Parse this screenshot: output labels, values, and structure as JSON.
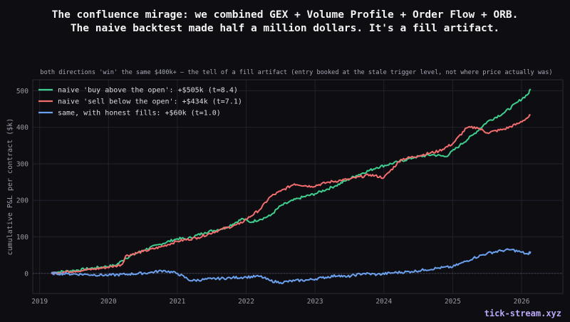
{
  "header": {
    "title_line1": "The confluence mirage: we combined GEX + Volume Profile + Order Flow + ORB.",
    "title_line2": "The naive backtest made half a million dollars. It's a fill artifact."
  },
  "brand": "tick-stream.xyz",
  "colors": {
    "background": "#0d0d12",
    "green": "#3fcf8e",
    "red": "#f26d6d",
    "blue": "#6aa0ee"
  },
  "chart_data": {
    "type": "line",
    "subtitle": "both directions 'win' the same $400k+ — the tell of a fill artifact (entry booked at the stale trigger level, not where price actually was)",
    "xlabel": "",
    "ylabel": "cumulative P&L per contract ($k)",
    "xlim": [
      2018.9,
      2026.6
    ],
    "ylim": [
      -55,
      530
    ],
    "x_ticks": [
      2019,
      2020,
      2021,
      2022,
      2023,
      2024,
      2025,
      2026
    ],
    "y_ticks": [
      0,
      100,
      200,
      300,
      400,
      500
    ],
    "grid": true,
    "legend": "top-left",
    "series": [
      {
        "name": "naive 'buy above the open': +$505k (t=8.4)",
        "color": "#3fcf8e",
        "x": [
          2019.17,
          2019.5,
          2019.8,
          2020.1,
          2020.2,
          2020.25,
          2020.5,
          2020.75,
          2021.0,
          2021.15,
          2021.4,
          2021.7,
          2021.95,
          2022.05,
          2022.2,
          2022.35,
          2022.5,
          2022.75,
          2023.0,
          2023.3,
          2023.6,
          2023.9,
          2024.2,
          2024.45,
          2024.7,
          2024.9,
          2025.1,
          2025.3,
          2025.5,
          2025.75,
          2025.95,
          2026.1,
          2026.13
        ],
        "y": [
          2,
          8,
          15,
          22,
          35,
          42,
          63,
          80,
          95,
          95,
          112,
          125,
          150,
          140,
          148,
          158,
          185,
          205,
          218,
          240,
          268,
          290,
          305,
          318,
          325,
          320,
          350,
          380,
          415,
          440,
          470,
          492,
          505
        ]
      },
      {
        "name": "naive 'sell below the open': +$434k (t=7.1)",
        "color": "#f26d6d",
        "x": [
          2019.17,
          2019.5,
          2019.8,
          2020.1,
          2020.2,
          2020.25,
          2020.5,
          2020.75,
          2021.0,
          2021.3,
          2021.6,
          2021.9,
          2022.0,
          2022.2,
          2022.35,
          2022.5,
          2022.7,
          2022.95,
          2023.2,
          2023.5,
          2023.8,
          2024.0,
          2024.25,
          2024.5,
          2024.8,
          2025.0,
          2025.2,
          2025.35,
          2025.5,
          2025.75,
          2025.95,
          2026.1,
          2026.13
        ],
        "y": [
          1,
          6,
          12,
          20,
          25,
          48,
          60,
          72,
          88,
          98,
          118,
          135,
          148,
          175,
          210,
          225,
          245,
          238,
          250,
          258,
          270,
          262,
          312,
          322,
          335,
          355,
          398,
          400,
          385,
          395,
          410,
          428,
          434
        ]
      },
      {
        "name": "same, with honest fills: +$60k (t=1.0)",
        "color": "#6aa0ee",
        "x": [
          2019.17,
          2019.4,
          2019.7,
          2020.0,
          2020.3,
          2020.6,
          2020.8,
          2021.0,
          2021.2,
          2021.5,
          2021.8,
          2022.0,
          2022.2,
          2022.35,
          2022.5,
          2022.7,
          2022.9,
          2023.1,
          2023.35,
          2023.45,
          2023.7,
          2023.9,
          2024.15,
          2024.4,
          2024.6,
          2024.8,
          2025.0,
          2025.15,
          2025.3,
          2025.5,
          2025.7,
          2025.85,
          2026.0,
          2026.1,
          2026.13
        ],
        "y": [
          0,
          -1,
          -3,
          -5,
          -2,
          2,
          8,
          0,
          -20,
          -15,
          -12,
          -10,
          -8,
          -20,
          -25,
          -20,
          -18,
          -12,
          -5,
          -10,
          0,
          -3,
          2,
          5,
          10,
          15,
          18,
          30,
          42,
          55,
          62,
          65,
          58,
          52,
          60
        ]
      }
    ]
  }
}
